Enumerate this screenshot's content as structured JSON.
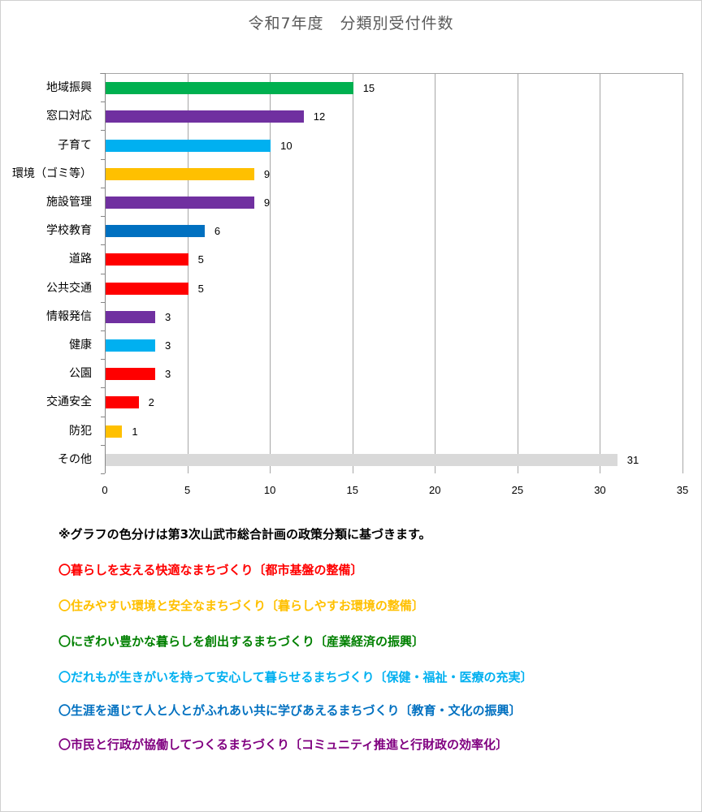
{
  "chart_data": {
    "type": "bar",
    "orientation": "horizontal",
    "title": "令和7年度　分類別受付件数",
    "xlabel": "",
    "ylabel": "",
    "xlim": [
      0,
      35
    ],
    "xticks": [
      0,
      5,
      10,
      15,
      20,
      25,
      30,
      35
    ],
    "grid": true,
    "legend": null,
    "categories": [
      "地域振興",
      "窓口対応",
      "子育て",
      "環境（ゴミ等）",
      "施設管理",
      "学校教育",
      "道路",
      "公共交通",
      "情報発信",
      "健康",
      "公園",
      "交通安全",
      "防犯",
      "その他"
    ],
    "values": [
      15,
      12,
      10,
      9,
      9,
      6,
      5,
      5,
      3,
      3,
      3,
      2,
      1,
      31
    ],
    "colors": [
      "#00b050",
      "#7030a0",
      "#00b0f0",
      "#ffc000",
      "#7030a0",
      "#0070c0",
      "#ff0000",
      "#ff0000",
      "#7030a0",
      "#00b0f0",
      "#ff0000",
      "#ff0000",
      "#ffc000",
      "#d9d9d9"
    ]
  },
  "title": "令和7年度　分類別受付件数",
  "x_ticks": [
    "0",
    "5",
    "10",
    "15",
    "20",
    "25",
    "30",
    "35"
  ],
  "bars": [
    {
      "label": "地域振興",
      "value": "15",
      "color": "#00b050"
    },
    {
      "label": "窓口対応",
      "value": "12",
      "color": "#7030a0"
    },
    {
      "label": "子育て",
      "value": "10",
      "color": "#00b0f0"
    },
    {
      "label": "環境（ゴミ等）",
      "value": "9",
      "color": "#ffc000"
    },
    {
      "label": "施設管理",
      "value": "9",
      "color": "#7030a0"
    },
    {
      "label": "学校教育",
      "value": "6",
      "color": "#0070c0"
    },
    {
      "label": "道路",
      "value": "5",
      "color": "#ff0000"
    },
    {
      "label": "公共交通",
      "value": "5",
      "color": "#ff0000"
    },
    {
      "label": "情報発信",
      "value": "3",
      "color": "#7030a0"
    },
    {
      "label": "健康",
      "value": "3",
      "color": "#00b0f0"
    },
    {
      "label": "公園",
      "value": "3",
      "color": "#ff0000"
    },
    {
      "label": "交通安全",
      "value": "2",
      "color": "#ff0000"
    },
    {
      "label": "防犯",
      "value": "1",
      "color": "#ffc000"
    },
    {
      "label": "その他",
      "value": "31",
      "color": "#d9d9d9"
    }
  ],
  "notes": {
    "heading": {
      "text": "※グラフの色分けは第3次山武市総合計画の政策分類に基づきます。",
      "color": "#000000"
    },
    "items": [
      {
        "text": "〇暮らしを支える快適なまちづくり〔都市基盤の整備〕",
        "color": "#ff0000"
      },
      {
        "text": "〇住みやすい環境と安全なまちづくり〔暮らしやすお環境の整備〕",
        "color": "#ffc000"
      },
      {
        "text": "〇にぎわい豊かな暮らしを創出するまちづくり〔産業経済の振興〕",
        "color": "#008000"
      },
      {
        "text": "〇だれもが生きがいを持って安心して暮らせるまちづくり〔保健・福祉・医療の充実〕",
        "color": "#00b0f0"
      },
      {
        "text": "〇生涯を通じて人と人とがふれあい共に学びあえるまちづくり〔教育・文化の振興〕",
        "color": "#0070c0"
      },
      {
        "text": "〇市民と行政が協働してつくるまちづくり〔コミュニティ推進と行財政の効率化〕",
        "color": "#800080"
      }
    ]
  }
}
